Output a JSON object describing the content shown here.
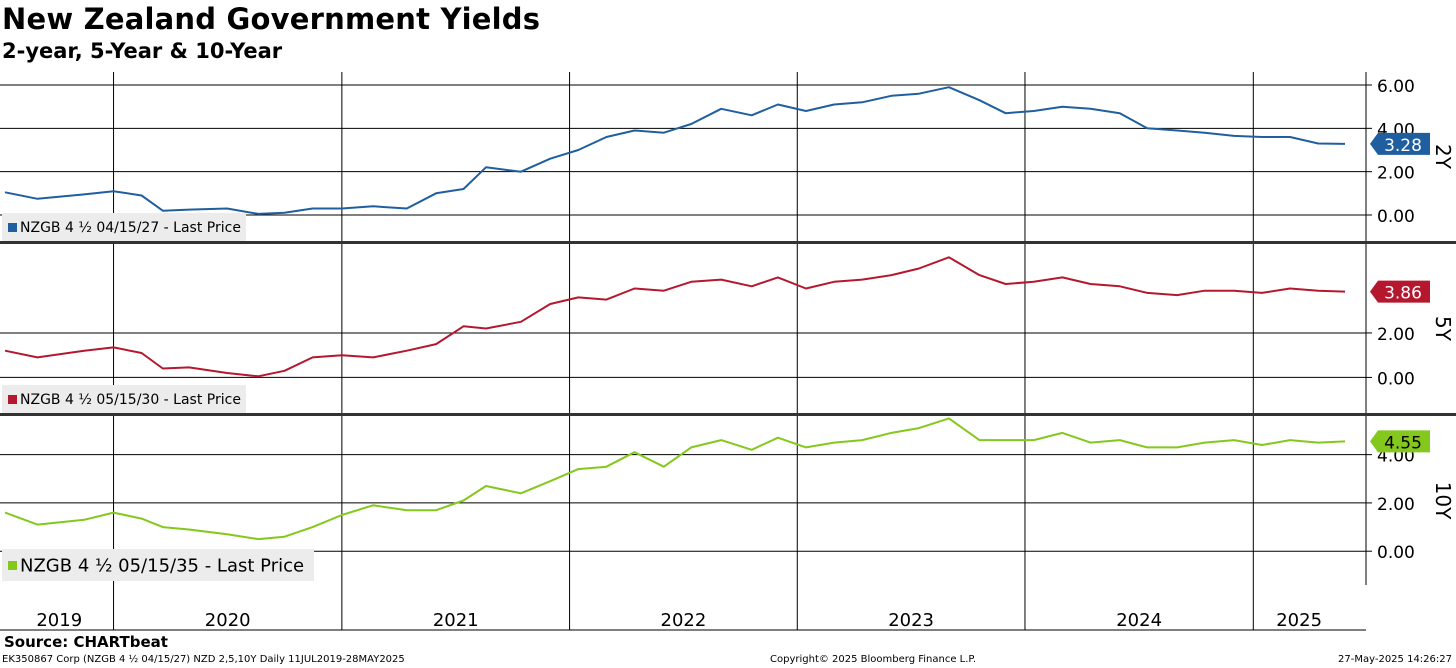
{
  "title": "New Zealand Government Yields",
  "subtitle": "2-year, 5-Year & 10-Year",
  "source": "Source: CHARTbeat",
  "footer": {
    "left": "EK350867 Corp (NZGB 4 ½ 04/15/27) NZD 2,5,10Y  Daily 11JUL2019-28MAY2025",
    "center": "Copyright© 2025 Bloomberg Finance L.P.",
    "right": "27-May-2025 14:26:27"
  },
  "chart_data": [
    {
      "type": "line",
      "panel_label": "2Y",
      "ylim": [
        -1.2,
        6.6
      ],
      "yticks": [
        0,
        2,
        4,
        6
      ],
      "ytick_labels": [
        "0.00",
        "2.00",
        "4.00",
        "6.00"
      ],
      "last_value_label": "3.28",
      "color": "#1f5fa0",
      "grid": true,
      "legend_position": "bottom-left",
      "series": [
        {
          "name": "NZGB 4 ½ 04/15/27 - Last Price",
          "last_value": 3.28,
          "x": [
            "2019-07-11",
            "2019-09-01",
            "2019-11-15",
            "2020-01-01",
            "2020-02-15",
            "2020-03-20",
            "2020-05-01",
            "2020-07-01",
            "2020-08-20",
            "2020-10-01",
            "2020-11-15",
            "2021-01-01",
            "2021-02-20",
            "2021-04-15",
            "2021-06-01",
            "2021-07-15",
            "2021-08-20",
            "2021-10-15",
            "2021-12-01",
            "2022-01-15",
            "2022-03-01",
            "2022-04-15",
            "2022-06-01",
            "2022-07-15",
            "2022-09-01",
            "2022-10-20",
            "2022-12-01",
            "2023-01-15",
            "2023-03-01",
            "2023-04-15",
            "2023-06-01",
            "2023-07-15",
            "2023-09-01",
            "2023-10-20",
            "2023-12-01",
            "2024-01-15",
            "2024-03-01",
            "2024-04-15",
            "2024-06-01",
            "2024-07-15",
            "2024-09-01",
            "2024-10-15",
            "2024-12-01",
            "2025-01-15",
            "2025-03-01",
            "2025-04-15",
            "2025-05-28"
          ],
          "values": [
            1.05,
            0.75,
            0.95,
            1.1,
            0.9,
            0.2,
            0.25,
            0.3,
            0.05,
            0.1,
            0.3,
            0.3,
            0.4,
            0.3,
            1.0,
            1.2,
            2.2,
            2.0,
            2.6,
            3.0,
            3.6,
            3.9,
            3.8,
            4.2,
            4.9,
            4.6,
            5.1,
            4.8,
            5.1,
            5.2,
            5.5,
            5.6,
            5.9,
            5.3,
            4.7,
            4.8,
            5.0,
            4.9,
            4.7,
            4.0,
            3.9,
            3.8,
            3.65,
            3.6,
            3.6,
            3.3,
            3.28
          ]
        }
      ]
    },
    {
      "type": "line",
      "panel_label": "5Y",
      "ylim": [
        -1.6,
        6.0
      ],
      "yticks": [
        0,
        2
      ],
      "ytick_labels": [
        "0.00",
        "2.00"
      ],
      "last_value_label": "3.86",
      "color": "#b5182e",
      "grid": true,
      "legend_position": "bottom-left",
      "series": [
        {
          "name": "NZGB 4 ½ 05/15/30 - Last Price",
          "last_value": 3.86,
          "x": [
            "2019-07-11",
            "2019-09-01",
            "2019-11-15",
            "2020-01-01",
            "2020-02-15",
            "2020-03-20",
            "2020-05-01",
            "2020-07-01",
            "2020-08-20",
            "2020-10-01",
            "2020-11-15",
            "2021-01-01",
            "2021-02-20",
            "2021-04-15",
            "2021-06-01",
            "2021-07-15",
            "2021-08-20",
            "2021-10-15",
            "2021-12-01",
            "2022-01-15",
            "2022-03-01",
            "2022-04-15",
            "2022-06-01",
            "2022-07-15",
            "2022-09-01",
            "2022-10-20",
            "2022-12-01",
            "2023-01-15",
            "2023-03-01",
            "2023-04-15",
            "2023-06-01",
            "2023-07-15",
            "2023-09-01",
            "2023-10-20",
            "2023-12-01",
            "2024-01-15",
            "2024-03-01",
            "2024-04-15",
            "2024-06-01",
            "2024-07-15",
            "2024-09-01",
            "2024-10-15",
            "2024-12-01",
            "2025-01-15",
            "2025-03-01",
            "2025-04-15",
            "2025-05-28"
          ],
          "values": [
            1.2,
            0.9,
            1.2,
            1.35,
            1.1,
            0.4,
            0.45,
            0.2,
            0.05,
            0.3,
            0.9,
            1.0,
            0.9,
            1.2,
            1.5,
            2.3,
            2.2,
            2.5,
            3.3,
            3.6,
            3.5,
            4.0,
            3.9,
            4.3,
            4.4,
            4.1,
            4.5,
            4.0,
            4.3,
            4.4,
            4.6,
            4.9,
            5.4,
            4.6,
            4.2,
            4.3,
            4.5,
            4.2,
            4.1,
            3.8,
            3.7,
            3.9,
            3.9,
            3.8,
            4.0,
            3.9,
            3.86
          ]
        }
      ]
    },
    {
      "type": "line",
      "panel_label": "10Y",
      "ylim": [
        -1.4,
        5.6
      ],
      "yticks": [
        0,
        2,
        4
      ],
      "ytick_labels": [
        "0.00",
        "2.00",
        "4.00"
      ],
      "last_value_label": "4.55",
      "color": "#84c81e",
      "grid": true,
      "legend_position": "bottom-left",
      "series": [
        {
          "name": "NZGB 4 ½ 05/15/35 - Last Price",
          "last_value": 4.55,
          "x": [
            "2019-07-11",
            "2019-09-01",
            "2019-11-15",
            "2020-01-01",
            "2020-02-15",
            "2020-03-20",
            "2020-05-01",
            "2020-07-01",
            "2020-08-20",
            "2020-10-01",
            "2020-11-15",
            "2021-01-01",
            "2021-02-20",
            "2021-04-15",
            "2021-06-01",
            "2021-07-15",
            "2021-08-20",
            "2021-10-15",
            "2021-12-01",
            "2022-01-15",
            "2022-03-01",
            "2022-04-15",
            "2022-06-01",
            "2022-07-15",
            "2022-09-01",
            "2022-10-20",
            "2022-12-01",
            "2023-01-15",
            "2023-03-01",
            "2023-04-15",
            "2023-06-01",
            "2023-07-15",
            "2023-09-01",
            "2023-10-20",
            "2023-12-01",
            "2024-01-15",
            "2024-03-01",
            "2024-04-15",
            "2024-06-01",
            "2024-07-15",
            "2024-09-01",
            "2024-10-15",
            "2024-12-01",
            "2025-01-15",
            "2025-03-01",
            "2025-04-15",
            "2025-05-28"
          ],
          "values": [
            1.6,
            1.1,
            1.3,
            1.6,
            1.35,
            1.0,
            0.9,
            0.7,
            0.5,
            0.6,
            1.0,
            1.5,
            1.9,
            1.7,
            1.7,
            2.1,
            2.7,
            2.4,
            2.9,
            3.4,
            3.5,
            4.1,
            3.5,
            4.3,
            4.6,
            4.2,
            4.7,
            4.3,
            4.5,
            4.6,
            4.9,
            5.1,
            5.5,
            4.6,
            4.6,
            4.6,
            4.9,
            4.5,
            4.6,
            4.3,
            4.3,
            4.5,
            4.6,
            4.4,
            4.6,
            4.5,
            4.55
          ]
        }
      ]
    }
  ],
  "x_axis": {
    "year_labels": [
      "2019",
      "2020",
      "2021",
      "2022",
      "2023",
      "2024",
      "2025"
    ]
  }
}
